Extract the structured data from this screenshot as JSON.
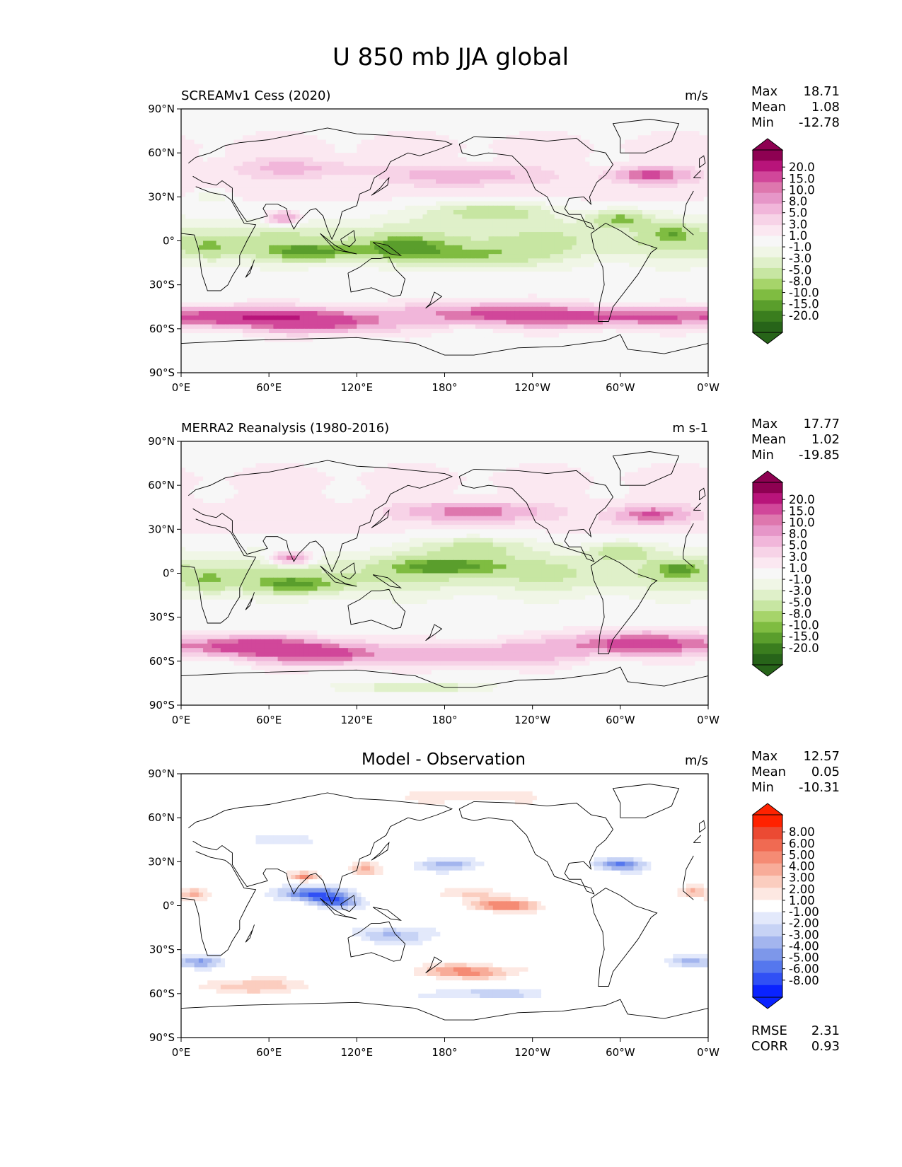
{
  "figure": {
    "title": "U 850 mb JJA global"
  },
  "colors": {
    "test_ref": [
      "#276419",
      "#3a7d1e",
      "#5a9e2c",
      "#7fbc41",
      "#a6d46a",
      "#c7e6a2",
      "#dff0c9",
      "#f0f6e6",
      "#f7f7f7",
      "#fbe8f1",
      "#f7d3e7",
      "#f1b6da",
      "#e696c8",
      "#de77ae",
      "#d1479a",
      "#b8147a",
      "#8e0152"
    ],
    "diff": [
      "#0a23ff",
      "#3050f5",
      "#5577ee",
      "#7d97ea",
      "#a3b5ee",
      "#c7d3f5",
      "#e3e9fb",
      "#ffffff",
      "#fde8e2",
      "#fbcdbf",
      "#f8ac99",
      "#f58b74",
      "#f06a52",
      "#eb4a33",
      "#ff2200"
    ],
    "coast": "#000000"
  },
  "panels": [
    {
      "id": "test",
      "left_title": "SCREAMv1 Cess (2020)",
      "center_title": "",
      "units": "m/s",
      "stats": {
        "labels": [
          "Max",
          "Mean",
          "Min"
        ],
        "values": [
          "18.71",
          "1.08",
          "-12.78"
        ]
      },
      "colorbar": {
        "ticks": [
          "20.0",
          "15.0",
          "10.0",
          "8.0",
          "5.0",
          "3.0",
          "1.0",
          "-1.0",
          "-3.0",
          "-5.0",
          "-8.0",
          "-10.0",
          "-15.0",
          "-20.0"
        ],
        "palette": "test_ref"
      },
      "field": "test"
    },
    {
      "id": "ref",
      "left_title": "MERRA2 Reanalysis (1980-2016)",
      "center_title": "",
      "units": "m s-1",
      "stats": {
        "labels": [
          "Max",
          "Mean",
          "Min"
        ],
        "values": [
          "17.77",
          "1.02",
          "-19.85"
        ]
      },
      "colorbar": {
        "ticks": [
          "20.0",
          "15.0",
          "10.0",
          "8.0",
          "5.0",
          "3.0",
          "1.0",
          "-1.0",
          "-3.0",
          "-5.0",
          "-8.0",
          "-10.0",
          "-15.0",
          "-20.0"
        ],
        "palette": "test_ref"
      },
      "field": "ref"
    },
    {
      "id": "diff",
      "left_title": "",
      "center_title": "Model - Observation",
      "units": "m/s",
      "stats": {
        "labels": [
          "Max",
          "Mean",
          "Min"
        ],
        "values": [
          "12.57",
          "0.05",
          "-10.31"
        ]
      },
      "colorbar": {
        "ticks": [
          "8.00",
          "6.00",
          "5.00",
          "4.00",
          "3.00",
          "2.00",
          "1.00",
          "-1.00",
          "-2.00",
          "-3.00",
          "-4.00",
          "-5.00",
          "-6.00",
          "-8.00"
        ],
        "palette": "diff"
      },
      "extra_stats": {
        "labels": [
          "RMSE",
          "CORR"
        ],
        "values": [
          "2.31",
          "0.93"
        ]
      },
      "field": "diff"
    }
  ],
  "chart_data": {
    "type": "heatmap",
    "title": "U 850 mb JJA global",
    "variable": "U 850 mb",
    "season": "JJA",
    "region": "global",
    "xlabel": "",
    "ylabel": "",
    "xlim": [
      0,
      360
    ],
    "ylim": [
      -90,
      90
    ],
    "x_ticks": [
      "0°E",
      "60°E",
      "120°E",
      "180°",
      "120°W",
      "60°W",
      "0°W"
    ],
    "y_ticks": [
      "90°N",
      "60°N",
      "30°N",
      "0°",
      "30°S",
      "60°S",
      "90°S"
    ],
    "test_levels": [
      -20,
      -15,
      -10,
      -8,
      -5,
      -3,
      -1,
      1,
      3,
      5,
      8,
      10,
      15,
      20
    ],
    "diff_levels": [
      -8,
      -6,
      -5,
      -4,
      -3,
      -2,
      -1,
      1,
      2,
      3,
      4,
      5,
      6,
      8
    ],
    "features": {
      "test": [
        {
          "lon": 40,
          "lat": -52,
          "sx": 45,
          "sy": 7,
          "val": 12
        },
        {
          "lon": 100,
          "lat": -55,
          "sx": 45,
          "sy": 8,
          "val": 12
        },
        {
          "lon": 210,
          "lat": -50,
          "sx": 60,
          "sy": 8,
          "val": 10
        },
        {
          "lon": 300,
          "lat": -52,
          "sx": 70,
          "sy": 7,
          "val": 10
        },
        {
          "lon": 70,
          "lat": 15,
          "sx": 12,
          "sy": 5,
          "val": 10
        },
        {
          "lon": 90,
          "lat": -8,
          "sx": 35,
          "sy": 6,
          "val": -8
        },
        {
          "lon": 150,
          "lat": -5,
          "sx": 25,
          "sy": 7,
          "val": -7
        },
        {
          "lon": 210,
          "lat": 20,
          "sx": 40,
          "sy": 7,
          "val": -7
        },
        {
          "lon": 200,
          "lat": -10,
          "sx": 45,
          "sy": 8,
          "val": -6
        },
        {
          "lon": 300,
          "lat": 15,
          "sx": 20,
          "sy": 6,
          "val": -8
        },
        {
          "lon": 335,
          "lat": 5,
          "sx": 15,
          "sy": 6,
          "val": -5
        },
        {
          "lon": 20,
          "lat": -5,
          "sx": 15,
          "sy": 8,
          "val": -5
        },
        {
          "lon": 195,
          "lat": 45,
          "sx": 40,
          "sy": 6,
          "val": 6
        },
        {
          "lon": 320,
          "lat": 45,
          "sx": 25,
          "sy": 5,
          "val": 9
        },
        {
          "lon": 80,
          "lat": 50,
          "sx": 50,
          "sy": 6,
          "val": 4
        },
        {
          "lon": 20,
          "lat": 30,
          "sx": 12,
          "sy": 5,
          "val": -4
        },
        {
          "lon": 0,
          "lat": 0,
          "sx": 1,
          "sy": 1,
          "val": 0
        }
      ],
      "ref": [
        {
          "lon": 45,
          "lat": -50,
          "sx": 45,
          "sy": 7,
          "val": 12
        },
        {
          "lon": 100,
          "lat": -55,
          "sx": 45,
          "sy": 8,
          "val": 11
        },
        {
          "lon": 210,
          "lat": -55,
          "sx": 60,
          "sy": 8,
          "val": 8
        },
        {
          "lon": 310,
          "lat": -48,
          "sx": 50,
          "sy": 8,
          "val": 12
        },
        {
          "lon": 75,
          "lat": 10,
          "sx": 15,
          "sy": 5,
          "val": 12
        },
        {
          "lon": 80,
          "lat": -8,
          "sx": 35,
          "sy": 6,
          "val": -7
        },
        {
          "lon": 185,
          "lat": 5,
          "sx": 40,
          "sy": 6,
          "val": -8
        },
        {
          "lon": 200,
          "lat": 18,
          "sx": 35,
          "sy": 7,
          "val": -6
        },
        {
          "lon": 300,
          "lat": 15,
          "sx": 20,
          "sy": 6,
          "val": -7
        },
        {
          "lon": 340,
          "lat": 3,
          "sx": 15,
          "sy": 6,
          "val": -6
        },
        {
          "lon": 20,
          "lat": -5,
          "sx": 15,
          "sy": 8,
          "val": -5
        },
        {
          "lon": 200,
          "lat": 42,
          "sx": 40,
          "sy": 6,
          "val": 8
        },
        {
          "lon": 320,
          "lat": 40,
          "sx": 25,
          "sy": 6,
          "val": 8
        },
        {
          "lon": 160,
          "lat": -78,
          "sx": 40,
          "sy": 3,
          "val": -6
        },
        {
          "lon": 0,
          "lat": 0,
          "sx": 1,
          "sy": 1,
          "val": 0
        }
      ],
      "diff": [
        {
          "lon": 90,
          "lat": 8,
          "sx": 25,
          "sy": 5,
          "val": -6
        },
        {
          "lon": 105,
          "lat": 2,
          "sx": 15,
          "sy": 4,
          "val": -5
        },
        {
          "lon": 85,
          "lat": 20,
          "sx": 10,
          "sy": 3,
          "val": 4
        },
        {
          "lon": 125,
          "lat": 25,
          "sx": 10,
          "sy": 5,
          "val": 3
        },
        {
          "lon": 220,
          "lat": 0,
          "sx": 25,
          "sy": 4,
          "val": 5
        },
        {
          "lon": 195,
          "lat": 8,
          "sx": 30,
          "sy": 4,
          "val": 2
        },
        {
          "lon": 300,
          "lat": 28,
          "sx": 18,
          "sy": 4,
          "val": -5
        },
        {
          "lon": 185,
          "lat": 28,
          "sx": 20,
          "sy": 4,
          "val": -4
        },
        {
          "lon": 150,
          "lat": -20,
          "sx": 30,
          "sy": 6,
          "val": -3
        },
        {
          "lon": 195,
          "lat": -45,
          "sx": 40,
          "sy": 5,
          "val": 4
        },
        {
          "lon": 50,
          "lat": -55,
          "sx": 35,
          "sy": 5,
          "val": 3
        },
        {
          "lon": 15,
          "lat": -38,
          "sx": 15,
          "sy": 4,
          "val": -4
        },
        {
          "lon": 345,
          "lat": -38,
          "sx": 15,
          "sy": 4,
          "val": -3
        },
        {
          "lon": 210,
          "lat": -60,
          "sx": 40,
          "sy": 3,
          "val": -3
        },
        {
          "lon": 60,
          "lat": 45,
          "sx": 25,
          "sy": 4,
          "val": -2
        },
        {
          "lon": 200,
          "lat": 75,
          "sx": 50,
          "sy": 5,
          "val": 2
        },
        {
          "lon": 350,
          "lat": 10,
          "sx": 10,
          "sy": 4,
          "val": 3
        },
        {
          "lon": 10,
          "lat": 8,
          "sx": 10,
          "sy": 4,
          "val": 3
        }
      ]
    }
  }
}
